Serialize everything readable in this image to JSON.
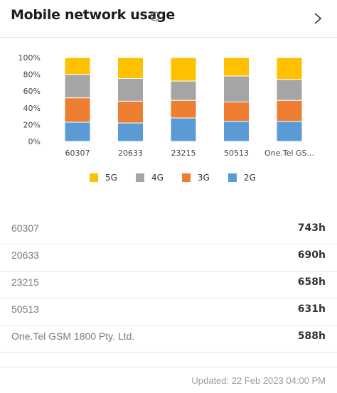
{
  "header": {
    "title": "Mobile network usage",
    "info_icon": "info-circle-icon",
    "nav_icon": "chevron-right-icon"
  },
  "chart_data": {
    "type": "bar",
    "stacked": true,
    "categories": [
      "60307",
      "20633",
      "23215",
      "50513",
      "One.Tel GS..."
    ],
    "y_ticks": [
      "100%",
      "80%",
      "60%",
      "40%",
      "20%",
      "0%"
    ],
    "ylim": [
      0,
      100
    ],
    "grid": false,
    "legend_position": "bottom",
    "series": [
      {
        "name": "2G",
        "color": "#5b9bd5",
        "values": [
          23,
          22,
          28,
          24,
          24
        ]
      },
      {
        "name": "3G",
        "color": "#ed7d31",
        "values": [
          29,
          26,
          21,
          23,
          25
        ]
      },
      {
        "name": "4G",
        "color": "#a5a5a5",
        "values": [
          28,
          27,
          23,
          31,
          25
        ]
      },
      {
        "name": "5G",
        "color": "#ffc000",
        "values": [
          20,
          25,
          28,
          22,
          26
        ]
      }
    ]
  },
  "legend": [
    {
      "label": "5G",
      "color": "#ffc000"
    },
    {
      "label": "4G",
      "color": "#a5a5a5"
    },
    {
      "label": "3G",
      "color": "#ed7d31"
    },
    {
      "label": "2G",
      "color": "#5b9bd5"
    }
  ],
  "table": {
    "rows": [
      {
        "name": "60307",
        "value": "743h"
      },
      {
        "name": "20633",
        "value": "690h"
      },
      {
        "name": "23215",
        "value": "658h"
      },
      {
        "name": "50513",
        "value": "631h"
      },
      {
        "name": "One.Tel GSM 1800 Pty. Ltd.",
        "value": "588h"
      }
    ]
  },
  "footer": {
    "updated": "Updated: 22 Feb 2023 04:00 PM"
  }
}
